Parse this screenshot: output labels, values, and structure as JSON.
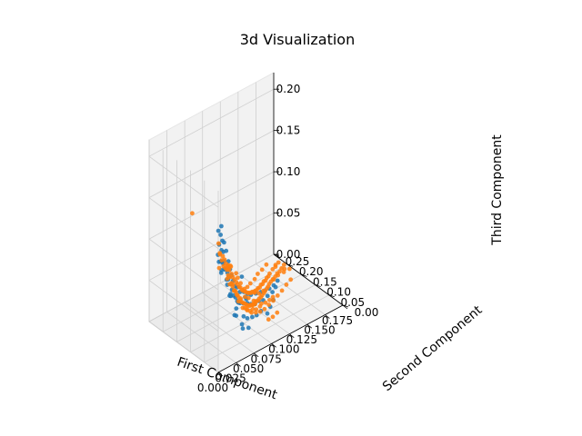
{
  "chart_data": {
    "type": "scatter",
    "title": "3d Visualization",
    "xlabel": "First Component",
    "ylabel": "Second Component",
    "zlabel": "Third Component",
    "xlim": [
      0.0,
      0.175
    ],
    "ylim": [
      0.0,
      0.25
    ],
    "zlim": [
      0.0,
      0.22
    ],
    "x_ticks": [
      "0.000",
      "0.025",
      "0.050",
      "0.075",
      "0.100",
      "0.125",
      "0.150",
      "0.175"
    ],
    "y_ticks": [
      "0.00",
      "0.05",
      "0.10",
      "0.15",
      "0.20",
      "0.25"
    ],
    "z_ticks": [
      "0.00",
      "0.05",
      "0.10",
      "0.15",
      "0.20"
    ],
    "grid": true,
    "series": [
      {
        "color": "#1f77b4",
        "points": [
          [
            0.005,
            0.01,
            0.15
          ],
          [
            0.008,
            0.012,
            0.16
          ],
          [
            0.006,
            0.015,
            0.165
          ],
          [
            0.01,
            0.014,
            0.14
          ],
          [
            0.004,
            0.008,
            0.13
          ],
          [
            0.012,
            0.016,
            0.15
          ],
          [
            0.009,
            0.012,
            0.17
          ],
          [
            0.014,
            0.018,
            0.135
          ],
          [
            0.016,
            0.02,
            0.145
          ],
          [
            0.018,
            0.025,
            0.12
          ],
          [
            0.02,
            0.022,
            0.11
          ],
          [
            0.022,
            0.028,
            0.13
          ],
          [
            0.024,
            0.026,
            0.095
          ],
          [
            0.026,
            0.03,
            0.115
          ],
          [
            0.028,
            0.034,
            0.105
          ],
          [
            0.03,
            0.032,
            0.085
          ],
          [
            0.032,
            0.04,
            0.1
          ],
          [
            0.034,
            0.038,
            0.075
          ],
          [
            0.036,
            0.045,
            0.09
          ],
          [
            0.038,
            0.042,
            0.065
          ],
          [
            0.04,
            0.05,
            0.08
          ],
          [
            0.042,
            0.046,
            0.06
          ],
          [
            0.045,
            0.055,
            0.07
          ],
          [
            0.048,
            0.052,
            0.05
          ],
          [
            0.05,
            0.06,
            0.065
          ],
          [
            0.053,
            0.058,
            0.045
          ],
          [
            0.056,
            0.066,
            0.055
          ],
          [
            0.06,
            0.064,
            0.04
          ],
          [
            0.064,
            0.072,
            0.05
          ],
          [
            0.068,
            0.07,
            0.035
          ],
          [
            0.072,
            0.08,
            0.042
          ],
          [
            0.076,
            0.078,
            0.028
          ],
          [
            0.08,
            0.088,
            0.035
          ],
          [
            0.085,
            0.086,
            0.022
          ],
          [
            0.09,
            0.096,
            0.03
          ],
          [
            0.095,
            0.098,
            0.018
          ],
          [
            0.1,
            0.104,
            0.025
          ],
          [
            0.105,
            0.108,
            0.012
          ],
          [
            0.11,
            0.114,
            0.02
          ],
          [
            0.115,
            0.118,
            0.01
          ],
          [
            0.12,
            0.124,
            0.015
          ],
          [
            0.125,
            0.126,
            0.008
          ],
          [
            0.13,
            0.134,
            0.012
          ],
          [
            0.135,
            0.14,
            0.006
          ],
          [
            0.14,
            0.146,
            0.01
          ],
          [
            0.018,
            0.016,
            0.1
          ],
          [
            0.022,
            0.024,
            0.09
          ],
          [
            0.03,
            0.036,
            0.07
          ],
          [
            0.04,
            0.044,
            0.04
          ],
          [
            0.055,
            0.05,
            0.03
          ],
          [
            0.065,
            0.062,
            0.02
          ],
          [
            0.075,
            0.07,
            0.015
          ],
          [
            0.085,
            0.08,
            0.01
          ],
          [
            0.095,
            0.09,
            0.008
          ],
          [
            0.07,
            0.095,
            0.06
          ],
          [
            0.06,
            0.11,
            0.04
          ],
          [
            0.075,
            0.12,
            0.02
          ],
          [
            0.09,
            0.13,
            0.015
          ],
          [
            0.04,
            0.07,
            0.085
          ],
          [
            0.028,
            0.05,
            0.1
          ],
          [
            0.015,
            0.03,
            0.12
          ],
          [
            0.012,
            0.02,
            0.11
          ],
          [
            0.05,
            0.04,
            0.02
          ],
          [
            0.045,
            0.03,
            0.03
          ],
          [
            0.1,
            0.08,
            0.005
          ],
          [
            0.11,
            0.095,
            0.005
          ],
          [
            0.06,
            0.045,
            0.015
          ],
          [
            0.035,
            0.025,
            0.055
          ],
          [
            0.085,
            0.15,
            0.01
          ],
          [
            0.1,
            0.16,
            0.005
          ],
          [
            0.002,
            0.006,
            0.14
          ],
          [
            0.006,
            0.004,
            0.12
          ],
          [
            0.01,
            0.008,
            0.125
          ],
          [
            0.026,
            0.022,
            0.075
          ],
          [
            0.036,
            0.028,
            0.045
          ],
          [
            0.12,
            0.11,
            0.005
          ],
          [
            0.02,
            0.04,
            0.115
          ],
          [
            0.032,
            0.06,
            0.095
          ],
          [
            0.046,
            0.08,
            0.075
          ],
          [
            0.058,
            0.09,
            0.05
          ]
        ]
      },
      {
        "color": "#ff7f0e",
        "points": [
          [
            0.004,
            0.004,
            0.14
          ],
          [
            0.008,
            0.008,
            0.13
          ],
          [
            0.012,
            0.012,
            0.12
          ],
          [
            0.016,
            0.016,
            0.115
          ],
          [
            0.02,
            0.02,
            0.11
          ],
          [
            0.024,
            0.026,
            0.1
          ],
          [
            0.028,
            0.03,
            0.095
          ],
          [
            0.032,
            0.034,
            0.085
          ],
          [
            0.036,
            0.04,
            0.08
          ],
          [
            0.04,
            0.044,
            0.07
          ],
          [
            0.044,
            0.05,
            0.065
          ],
          [
            0.048,
            0.054,
            0.058
          ],
          [
            0.052,
            0.06,
            0.052
          ],
          [
            0.056,
            0.064,
            0.046
          ],
          [
            0.06,
            0.07,
            0.04
          ],
          [
            0.064,
            0.074,
            0.036
          ],
          [
            0.068,
            0.08,
            0.032
          ],
          [
            0.072,
            0.084,
            0.028
          ],
          [
            0.076,
            0.09,
            0.024
          ],
          [
            0.08,
            0.094,
            0.02
          ],
          [
            0.084,
            0.1,
            0.018
          ],
          [
            0.088,
            0.104,
            0.015
          ],
          [
            0.092,
            0.11,
            0.012
          ],
          [
            0.096,
            0.114,
            0.01
          ],
          [
            0.1,
            0.12,
            0.01
          ],
          [
            0.104,
            0.124,
            0.008
          ],
          [
            0.108,
            0.13,
            0.007
          ],
          [
            0.112,
            0.134,
            0.006
          ],
          [
            0.116,
            0.14,
            0.005
          ],
          [
            0.12,
            0.144,
            0.005
          ],
          [
            0.124,
            0.15,
            0.004
          ],
          [
            0.128,
            0.154,
            0.004
          ],
          [
            0.132,
            0.16,
            0.003
          ],
          [
            0.136,
            0.166,
            0.003
          ],
          [
            0.14,
            0.17,
            0.003
          ],
          [
            0.145,
            0.176,
            0.002
          ],
          [
            0.15,
            0.18,
            0.002
          ],
          [
            0.155,
            0.186,
            0.002
          ],
          [
            0.16,
            0.19,
            0.001
          ],
          [
            0.165,
            0.196,
            0.001
          ],
          [
            0.01,
            0.02,
            0.135
          ],
          [
            0.018,
            0.03,
            0.125
          ],
          [
            0.026,
            0.04,
            0.11
          ],
          [
            0.034,
            0.05,
            0.098
          ],
          [
            0.042,
            0.06,
            0.085
          ],
          [
            0.05,
            0.07,
            0.072
          ],
          [
            0.058,
            0.08,
            0.06
          ],
          [
            0.066,
            0.09,
            0.05
          ],
          [
            0.074,
            0.1,
            0.04
          ],
          [
            0.082,
            0.11,
            0.032
          ],
          [
            0.09,
            0.12,
            0.025
          ],
          [
            0.098,
            0.13,
            0.02
          ],
          [
            0.106,
            0.14,
            0.015
          ],
          [
            0.114,
            0.15,
            0.012
          ],
          [
            0.122,
            0.16,
            0.01
          ],
          [
            0.13,
            0.17,
            0.008
          ],
          [
            0.138,
            0.18,
            0.006
          ],
          [
            0.146,
            0.19,
            0.005
          ],
          [
            0.154,
            0.2,
            0.004
          ],
          [
            0.162,
            0.21,
            0.003
          ],
          [
            0.03,
            0.02,
            0.08
          ],
          [
            0.04,
            0.03,
            0.06
          ],
          [
            0.05,
            0.04,
            0.045
          ],
          [
            0.06,
            0.05,
            0.035
          ],
          [
            0.07,
            0.06,
            0.025
          ],
          [
            0.08,
            0.07,
            0.018
          ],
          [
            0.09,
            0.08,
            0.012
          ],
          [
            0.1,
            0.09,
            0.008
          ],
          [
            0.11,
            0.1,
            0.006
          ],
          [
            0.12,
            0.11,
            0.004
          ],
          [
            0.13,
            0.12,
            0.003
          ],
          [
            0.14,
            0.13,
            0.002
          ],
          [
            0.15,
            0.14,
            0.002
          ],
          [
            0.16,
            0.15,
            0.001
          ],
          [
            0.02,
            0.01,
            0.095
          ],
          [
            0.015,
            0.006,
            0.105
          ],
          [
            0.006,
            0.014,
            0.15
          ],
          [
            0.002,
            0.002,
            0.125
          ],
          [
            0.06,
            0.09,
            0.07
          ],
          [
            0.05,
            0.085,
            0.085
          ],
          [
            0.07,
            0.11,
            0.055
          ],
          [
            0.08,
            0.125,
            0.04
          ],
          [
            0.045,
            0.07,
            0.09
          ],
          [
            0.035,
            0.055,
            0.1
          ],
          [
            0.09,
            0.1,
            0.03
          ],
          [
            0.1,
            0.11,
            0.022
          ],
          [
            0.11,
            0.12,
            0.018
          ],
          [
            0.095,
            0.15,
            0.02
          ],
          [
            0.105,
            0.165,
            0.014
          ],
          [
            0.115,
            0.18,
            0.01
          ],
          [
            0.125,
            0.19,
            0.008
          ],
          [
            0.135,
            0.205,
            0.006
          ],
          [
            0.145,
            0.215,
            0.004
          ],
          [
            0.155,
            0.225,
            0.003
          ],
          [
            0.14,
            0.16,
            0.008
          ],
          [
            0.15,
            0.17,
            0.006
          ],
          [
            0.16,
            0.175,
            0.004
          ],
          [
            0.165,
            0.185,
            0.003
          ],
          [
            0.17,
            0.2,
            0.002
          ],
          [
            0.168,
            0.215,
            0.002
          ],
          [
            0.17,
            0.18,
            0.002
          ],
          [
            0.16,
            0.205,
            0.003
          ],
          [
            0.064,
            0.068,
            0.045
          ],
          [
            0.072,
            0.076,
            0.038
          ],
          [
            0.076,
            0.07,
            0.03
          ],
          [
            0.084,
            0.088,
            0.026
          ],
          [
            0.088,
            0.092,
            0.022
          ],
          [
            0.092,
            0.086,
            0.016
          ],
          [
            0.068,
            0.06,
            0.028
          ],
          [
            0.054,
            0.058,
            0.05
          ],
          [
            0.046,
            0.052,
            0.06
          ],
          [
            0.038,
            0.046,
            0.075
          ],
          [
            0.045,
            0.21,
            0.12
          ],
          [
            0.09,
            0.05,
            0.01
          ],
          [
            0.1,
            0.06,
            0.006
          ],
          [
            0.11,
            0.07,
            0.004
          ],
          [
            0.022,
            0.034,
            0.118
          ],
          [
            0.03,
            0.044,
            0.104
          ],
          [
            0.038,
            0.058,
            0.092
          ],
          [
            0.046,
            0.066,
            0.078
          ],
          [
            0.054,
            0.074,
            0.066
          ],
          [
            0.062,
            0.084,
            0.054
          ],
          [
            0.07,
            0.094,
            0.044
          ],
          [
            0.078,
            0.104,
            0.036
          ],
          [
            0.086,
            0.114,
            0.028
          ],
          [
            0.094,
            0.124,
            0.022
          ],
          [
            0.102,
            0.134,
            0.017
          ],
          [
            0.11,
            0.144,
            0.013
          ],
          [
            0.118,
            0.154,
            0.01
          ],
          [
            0.126,
            0.164,
            0.008
          ],
          [
            0.134,
            0.174,
            0.006
          ],
          [
            0.142,
            0.184,
            0.005
          ],
          [
            0.056,
            0.048,
            0.04
          ],
          [
            0.062,
            0.056,
            0.034
          ],
          [
            0.074,
            0.066,
            0.026
          ],
          [
            0.082,
            0.074,
            0.02
          ],
          [
            0.098,
            0.096,
            0.014
          ],
          [
            0.106,
            0.102,
            0.01
          ],
          [
            0.114,
            0.108,
            0.008
          ],
          [
            0.122,
            0.116,
            0.006
          ]
        ]
      }
    ]
  }
}
